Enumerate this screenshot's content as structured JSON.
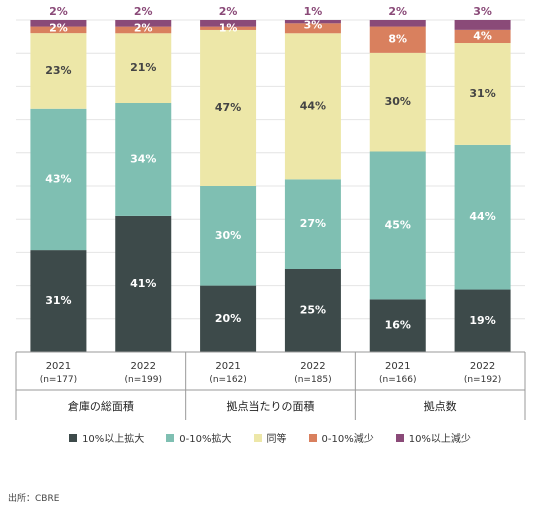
{
  "chart_data": {
    "type": "bar",
    "stacked": true,
    "percent": true,
    "groups": [
      {
        "label": "倉庫の総面積",
        "bars": [
          {
            "year": "2021",
            "n": "(n=177)",
            "values": [
              31,
              43,
              23,
              2,
              2
            ]
          },
          {
            "year": "2022",
            "n": "(n=199)",
            "values": [
              41,
              34,
              21,
              2,
              2
            ]
          }
        ]
      },
      {
        "label": "拠点当たりの面積",
        "bars": [
          {
            "year": "2021",
            "n": "(n=162)",
            "values": [
              20,
              30,
              47,
              1,
              2
            ]
          },
          {
            "year": "2022",
            "n": "(n=185)",
            "values": [
              25,
              27,
              44,
              3,
              1
            ]
          }
        ]
      },
      {
        "label": "拠点数",
        "bars": [
          {
            "year": "2021",
            "n": "(n=166)",
            "values": [
              16,
              45,
              30,
              8,
              2
            ]
          },
          {
            "year": "2022",
            "n": "(n=192)",
            "values": [
              19,
              44,
              31,
              4,
              3
            ]
          }
        ]
      }
    ],
    "series": [
      {
        "name": "10%以上拡大",
        "color": "#3d4a4a"
      },
      {
        "name": "0-10%拡大",
        "color": "#7fbfb2"
      },
      {
        "name": "同等",
        "color": "#ede7a8"
      },
      {
        "name": "0-10%減少",
        "color": "#d9805e"
      },
      {
        "name": "10%以上減少",
        "color": "#8a4a78"
      }
    ],
    "ylim": [
      0,
      100
    ],
    "grid": true,
    "legend_position": "bottom"
  },
  "source": "出所：CBRE"
}
